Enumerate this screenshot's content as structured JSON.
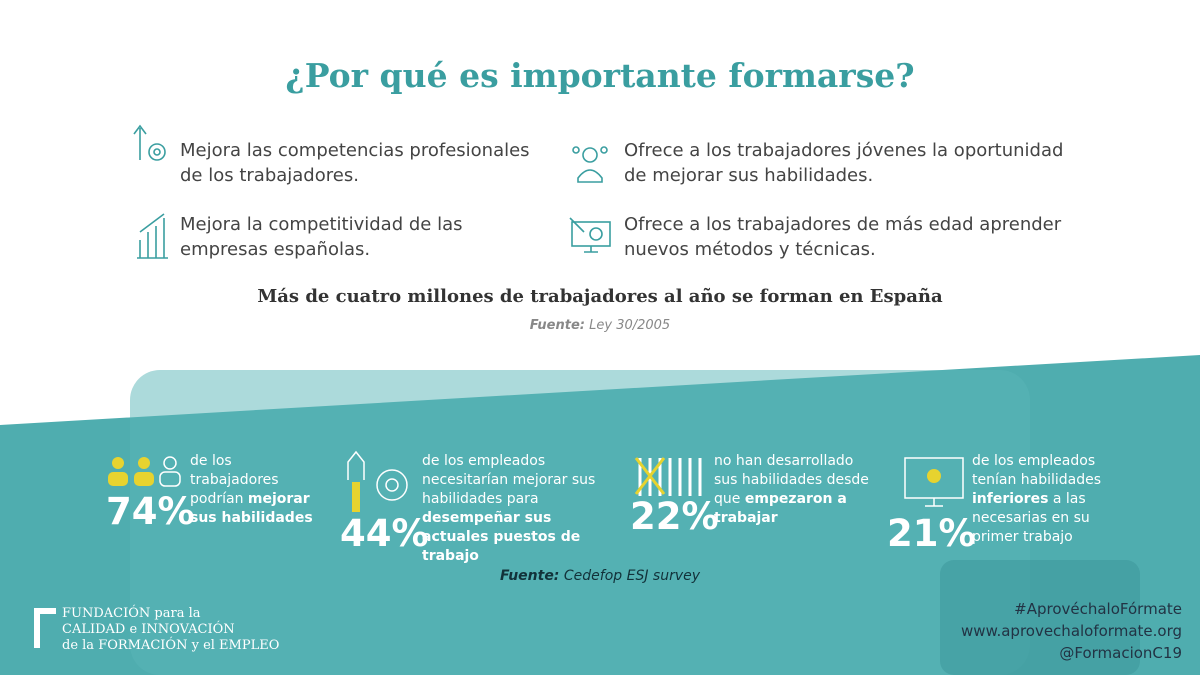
{
  "header": {
    "title": "¿Por qué es importante formarse?"
  },
  "benefits": [
    "Mejora las competencias profesionales de los trabajadores.",
    "Ofrece a los trabajadores jóvenes la oportunidad de mejorar sus habilidades.",
    "Mejora la competitividad de las empresas españolas.",
    "Ofrece a los trabajadores de más edad aprender nuevos métodos y técnicas."
  ],
  "highlight": {
    "text": "Más de cuatro millones de trabajadores al año se forman en España",
    "source_label": "Fuente:",
    "source": "Ley 30/2005"
  },
  "stats": [
    {
      "figure": "74%",
      "segments": [
        {
          "text": "de los trabajadores podrían ",
          "bold": false
        },
        {
          "text": "mejorar sus habilidades",
          "bold": true
        }
      ]
    },
    {
      "figure": "44%",
      "segments": [
        {
          "text": "de los empleados necesitarían mejorar sus habilidades para ",
          "bold": false
        },
        {
          "text": "desempeñar sus actuales puestos de trabajo",
          "bold": true
        }
      ]
    },
    {
      "figure": "22%",
      "segments": [
        {
          "text": "no han desarrollado sus habilidades desde que ",
          "bold": false
        },
        {
          "text": "empezaron a trabajar",
          "bold": true
        }
      ]
    },
    {
      "figure": "21%",
      "segments": [
        {
          "text": "de los empleados tenían habilidades ",
          "bold": false
        },
        {
          "text": "inferiores",
          "bold": true
        },
        {
          "text": " a las necesarias en su primer trabajo",
          "bold": false
        }
      ]
    }
  ],
  "stats_source": {
    "label": "Fuente:",
    "text": "Cedefop ESJ survey"
  },
  "logo": {
    "lines": [
      "FUNDACIÓN para la",
      "CALIDAD e INNOVACIÓN",
      "de la FORMACIÓN y el EMPLEO"
    ]
  },
  "footer": {
    "hashtag": "#AprovéchaloFórmate",
    "url": "www.aprovechaloformate.org",
    "handle": "@FormacionC19"
  }
}
